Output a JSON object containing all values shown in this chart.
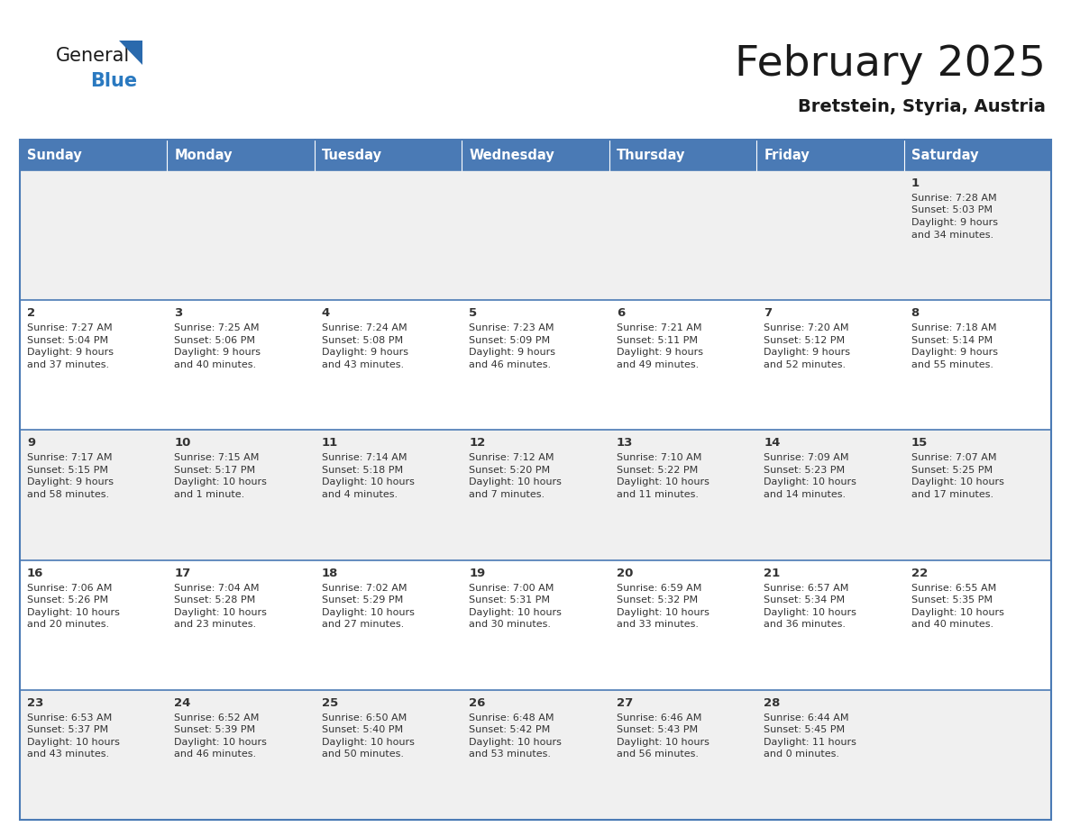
{
  "title": "February 2025",
  "subtitle": "Bretstein, Styria, Austria",
  "days_of_week": [
    "Sunday",
    "Monday",
    "Tuesday",
    "Wednesday",
    "Thursday",
    "Friday",
    "Saturday"
  ],
  "header_bg": "#4a7ab5",
  "header_text": "#ffffff",
  "row_bg_odd": "#f0f0f0",
  "row_bg_even": "#ffffff",
  "border_color": "#4a7ab5",
  "day_number_color": "#333333",
  "cell_text_color": "#333333",
  "title_color": "#1a1a1a",
  "subtitle_color": "#1a1a1a",
  "general_black": "#1a1a1a",
  "general_blue_color": "#2a79c0",
  "triangle_color": "#2a6aad",
  "calendar_data": [
    [
      null,
      null,
      null,
      null,
      null,
      null,
      {
        "day": 1,
        "sunrise": "7:28 AM",
        "sunset": "5:03 PM",
        "daylight": "9 hours and 34 minutes."
      }
    ],
    [
      {
        "day": 2,
        "sunrise": "7:27 AM",
        "sunset": "5:04 PM",
        "daylight": "9 hours and 37 minutes."
      },
      {
        "day": 3,
        "sunrise": "7:25 AM",
        "sunset": "5:06 PM",
        "daylight": "9 hours and 40 minutes."
      },
      {
        "day": 4,
        "sunrise": "7:24 AM",
        "sunset": "5:08 PM",
        "daylight": "9 hours and 43 minutes."
      },
      {
        "day": 5,
        "sunrise": "7:23 AM",
        "sunset": "5:09 PM",
        "daylight": "9 hours and 46 minutes."
      },
      {
        "day": 6,
        "sunrise": "7:21 AM",
        "sunset": "5:11 PM",
        "daylight": "9 hours and 49 minutes."
      },
      {
        "day": 7,
        "sunrise": "7:20 AM",
        "sunset": "5:12 PM",
        "daylight": "9 hours and 52 minutes."
      },
      {
        "day": 8,
        "sunrise": "7:18 AM",
        "sunset": "5:14 PM",
        "daylight": "9 hours and 55 minutes."
      }
    ],
    [
      {
        "day": 9,
        "sunrise": "7:17 AM",
        "sunset": "5:15 PM",
        "daylight": "9 hours and 58 minutes."
      },
      {
        "day": 10,
        "sunrise": "7:15 AM",
        "sunset": "5:17 PM",
        "daylight": "10 hours and 1 minute."
      },
      {
        "day": 11,
        "sunrise": "7:14 AM",
        "sunset": "5:18 PM",
        "daylight": "10 hours and 4 minutes."
      },
      {
        "day": 12,
        "sunrise": "7:12 AM",
        "sunset": "5:20 PM",
        "daylight": "10 hours and 7 minutes."
      },
      {
        "day": 13,
        "sunrise": "7:10 AM",
        "sunset": "5:22 PM",
        "daylight": "10 hours and 11 minutes."
      },
      {
        "day": 14,
        "sunrise": "7:09 AM",
        "sunset": "5:23 PM",
        "daylight": "10 hours and 14 minutes."
      },
      {
        "day": 15,
        "sunrise": "7:07 AM",
        "sunset": "5:25 PM",
        "daylight": "10 hours and 17 minutes."
      }
    ],
    [
      {
        "day": 16,
        "sunrise": "7:06 AM",
        "sunset": "5:26 PM",
        "daylight": "10 hours and 20 minutes."
      },
      {
        "day": 17,
        "sunrise": "7:04 AM",
        "sunset": "5:28 PM",
        "daylight": "10 hours and 23 minutes."
      },
      {
        "day": 18,
        "sunrise": "7:02 AM",
        "sunset": "5:29 PM",
        "daylight": "10 hours and 27 minutes."
      },
      {
        "day": 19,
        "sunrise": "7:00 AM",
        "sunset": "5:31 PM",
        "daylight": "10 hours and 30 minutes."
      },
      {
        "day": 20,
        "sunrise": "6:59 AM",
        "sunset": "5:32 PM",
        "daylight": "10 hours and 33 minutes."
      },
      {
        "day": 21,
        "sunrise": "6:57 AM",
        "sunset": "5:34 PM",
        "daylight": "10 hours and 36 minutes."
      },
      {
        "day": 22,
        "sunrise": "6:55 AM",
        "sunset": "5:35 PM",
        "daylight": "10 hours and 40 minutes."
      }
    ],
    [
      {
        "day": 23,
        "sunrise": "6:53 AM",
        "sunset": "5:37 PM",
        "daylight": "10 hours and 43 minutes."
      },
      {
        "day": 24,
        "sunrise": "6:52 AM",
        "sunset": "5:39 PM",
        "daylight": "10 hours and 46 minutes."
      },
      {
        "day": 25,
        "sunrise": "6:50 AM",
        "sunset": "5:40 PM",
        "daylight": "10 hours and 50 minutes."
      },
      {
        "day": 26,
        "sunrise": "6:48 AM",
        "sunset": "5:42 PM",
        "daylight": "10 hours and 53 minutes."
      },
      {
        "day": 27,
        "sunrise": "6:46 AM",
        "sunset": "5:43 PM",
        "daylight": "10 hours and 56 minutes."
      },
      {
        "day": 28,
        "sunrise": "6:44 AM",
        "sunset": "5:45 PM",
        "daylight": "11 hours and 0 minutes."
      },
      null
    ]
  ]
}
